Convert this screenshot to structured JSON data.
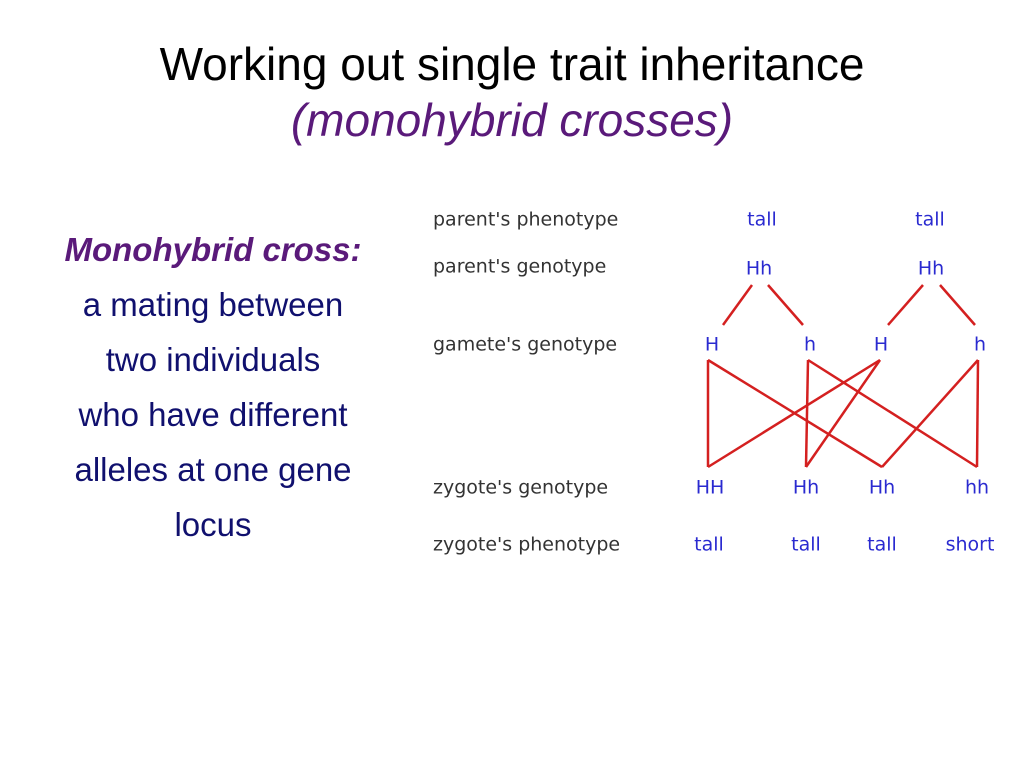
{
  "title": "Working out single trait inheritance",
  "subtitle": "(monohybrid crosses)",
  "definition": {
    "term": "Monohybrid cross:",
    "lines": [
      "a mating between",
      "two individuals",
      "who have different",
      "alleles at one gene",
      "locus"
    ]
  },
  "diagram": {
    "row_labels": [
      "parent's phenotype",
      "parent's genotype",
      "gamete's genotype",
      "zygote's genotype",
      "zygote's phenotype"
    ],
    "parent_phenotypes": [
      "tall",
      "tall"
    ],
    "parent_genotypes": [
      "Hh",
      "Hh"
    ],
    "gametes": [
      "H",
      "h",
      "H",
      "h"
    ],
    "zygote_genotypes": [
      "HH",
      "Hh",
      "Hh",
      "hh"
    ],
    "zygote_phenotypes": [
      "tall",
      "tall",
      "tall",
      "short"
    ]
  }
}
